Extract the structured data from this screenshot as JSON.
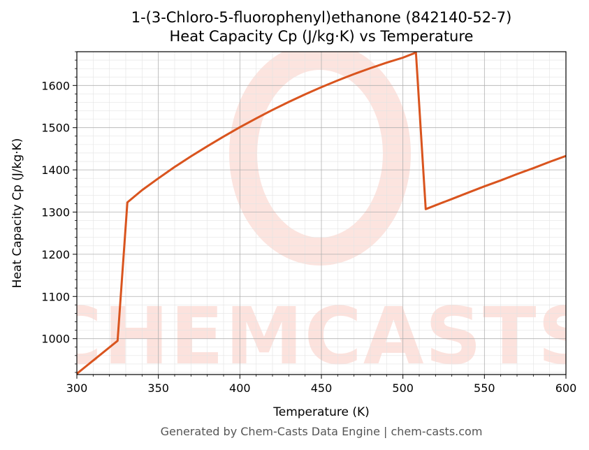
{
  "figure": {
    "title_line1": "1-(3-Chloro-5-fluorophenyl)ethanone (842140-52-7)",
    "title_line2": "Heat Capacity Cp (J/kg·K) vs Temperature",
    "footer": "Generated by Chem-Casts Data Engine | chem-casts.com",
    "watermark": "CHEMCASTS"
  },
  "chart_data": {
    "type": "line",
    "title": "1-(3-Chloro-5-fluorophenyl)ethanone (842140-52-7)\nHeat Capacity Cp (J/kg·K) vs Temperature",
    "xlabel": "Temperature (K)",
    "ylabel": "Heat Capacity Cp (J/kg·K)",
    "xlim": [
      300,
      600
    ],
    "ylim": [
      915,
      1680
    ],
    "xticks": [
      300,
      350,
      400,
      450,
      500,
      550,
      600
    ],
    "yticks": [
      1000,
      1100,
      1200,
      1300,
      1400,
      1500,
      1600
    ],
    "grid": true,
    "line_color": "#d9541e",
    "series": [
      {
        "x": [
          300,
          325,
          331,
          340,
          350,
          360,
          370,
          380,
          390,
          400,
          410,
          420,
          430,
          440,
          450,
          460,
          470,
          480,
          490,
          500,
          508,
          514,
          520,
          530,
          540,
          550,
          560,
          570,
          580,
          590,
          600
        ],
        "values": [
          917,
          995,
          1323,
          1352,
          1380,
          1407,
          1432,
          1456,
          1479,
          1501,
          1522,
          1542,
          1561,
          1579,
          1596,
          1612,
          1627,
          1641,
          1654,
          1666,
          1678,
          1307,
          1316,
          1331,
          1346,
          1361,
          1375,
          1390,
          1404,
          1419,
          1433
        ]
      }
    ]
  }
}
